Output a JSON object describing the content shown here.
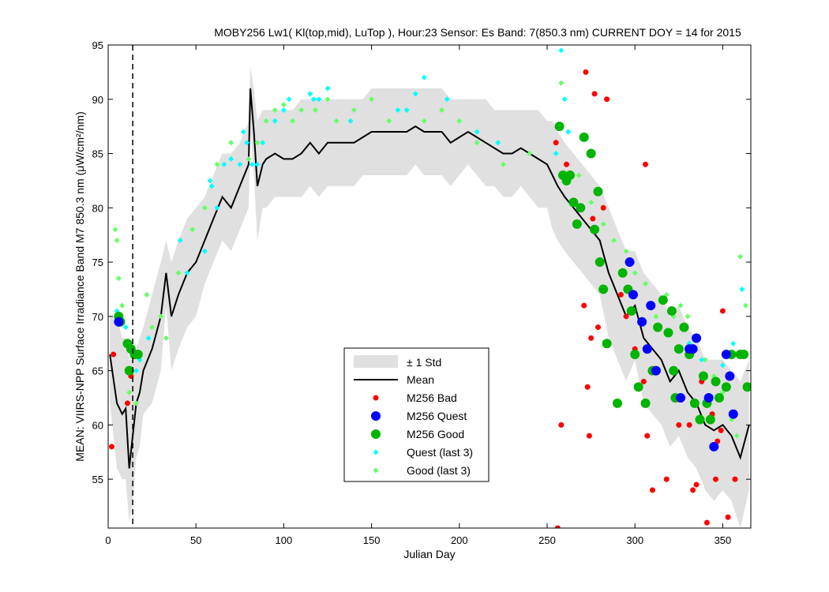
{
  "chart_data": {
    "type": "scatter",
    "title": "MOBY256   Lw1( Kl(top,mid), LuTop ),   Hour:23 Sensor: Es Band: 7(850.3 nm)   CURRENT DOY = 14 for 2015",
    "xlabel": "Julian Day",
    "ylabel": "MEAN: VIIRS-NPP Surface Irradiance Band M7 850.3 nm (μW/cm²/nm)",
    "xlim": [
      0,
      366
    ],
    "ylim": [
      50.5,
      95
    ],
    "xticks": [
      0,
      50,
      100,
      150,
      200,
      250,
      300,
      350
    ],
    "yticks": [
      55,
      60,
      65,
      70,
      75,
      80,
      85,
      90,
      95
    ],
    "current_doy": 14,
    "legend_position": "center-bottom",
    "legend": [
      "± 1 Std",
      "Mean",
      "M256 Bad",
      "M256 Quest",
      "M256 Good",
      "Quest (last 3)",
      "Good (last 3)"
    ],
    "colors": {
      "std_band": "#e0e0e0",
      "mean": "#000000",
      "bad": "#ff0000",
      "quest": "#0000ff",
      "good": "#00b400",
      "quest_last3": "#00ffff",
      "good_last3": "#66ff66"
    },
    "mean": {
      "x": [
        1,
        5,
        8,
        10,
        12,
        14,
        16,
        18,
        20,
        25,
        30,
        33,
        36,
        40,
        45,
        50,
        55,
        60,
        65,
        70,
        75,
        80,
        81,
        83,
        85,
        88,
        90,
        95,
        100,
        105,
        110,
        115,
        120,
        125,
        130,
        135,
        140,
        145,
        150,
        155,
        160,
        165,
        170,
        175,
        180,
        185,
        190,
        195,
        200,
        205,
        210,
        215,
        220,
        225,
        230,
        235,
        240,
        245,
        250,
        253,
        256,
        260,
        265,
        270,
        275,
        280,
        285,
        290,
        295,
        300,
        305,
        310,
        315,
        320,
        325,
        330,
        335,
        340,
        345,
        350,
        355,
        360,
        365
      ],
      "y": [
        66.5,
        62,
        61,
        61.5,
        56,
        59,
        62,
        63,
        65,
        67,
        70,
        74,
        70,
        72,
        74,
        75,
        77,
        79,
        81,
        80,
        82,
        84,
        91,
        87,
        82,
        84,
        84.5,
        85,
        84.5,
        84.5,
        85,
        86,
        85,
        86,
        86,
        86,
        86,
        86.5,
        87,
        87,
        87,
        87,
        87,
        87.5,
        87,
        87,
        87,
        86,
        86.5,
        87,
        86.5,
        86,
        85.5,
        85,
        85,
        85.5,
        85,
        84.5,
        84,
        83,
        82,
        81,
        80,
        79,
        78,
        77,
        74,
        72,
        70,
        71,
        68,
        67,
        66,
        64,
        65,
        63,
        62,
        60,
        59.5,
        60,
        59,
        57,
        60
      ]
    },
    "std_upper": [
      70,
      70,
      68,
      68,
      66,
      66,
      67,
      68,
      69,
      72,
      75,
      77,
      75,
      77,
      79,
      80,
      81,
      83,
      85,
      85,
      86,
      88,
      93,
      91,
      88,
      89,
      89,
      89,
      89,
      89,
      90,
      90,
      90,
      90,
      90,
      90,
      90,
      90,
      91,
      91,
      91,
      91,
      91,
      91,
      91,
      91,
      91,
      90,
      90,
      90,
      90,
      90,
      89,
      89,
      89,
      89,
      89,
      89,
      88,
      88,
      87,
      86,
      85,
      84,
      83,
      82,
      80,
      78,
      76,
      76,
      74,
      73,
      72,
      70,
      71,
      69,
      68,
      66,
      66,
      66,
      65,
      64,
      66
    ],
    "std_lower": [
      62,
      56,
      55,
      55,
      51,
      53,
      57,
      58,
      61,
      62,
      65,
      71,
      65,
      67,
      69,
      70,
      73,
      75,
      77,
      76,
      78,
      80,
      87,
      83,
      77,
      80,
      80,
      81,
      81,
      81,
      81,
      82,
      81,
      82,
      82,
      82,
      82,
      83,
      83,
      83,
      83,
      83,
      83,
      84,
      83,
      83,
      83,
      82,
      83,
      84,
      83,
      82,
      82,
      81,
      81,
      82,
      81,
      80,
      80,
      78,
      77,
      76,
      75,
      74,
      73,
      72,
      68,
      66,
      64,
      66,
      62,
      61,
      60,
      58,
      59,
      57,
      56,
      54,
      53,
      54,
      53,
      50.5,
      54
    ],
    "m256_bad": {
      "x": [
        2,
        3,
        11,
        13,
        255,
        256,
        258,
        261,
        271,
        272,
        273,
        274,
        275,
        276,
        277,
        279,
        282,
        284,
        292,
        295,
        297,
        300,
        305,
        306,
        307,
        310,
        318,
        325,
        331,
        333,
        335,
        338,
        341,
        344,
        346,
        347,
        349,
        350,
        353,
        357
      ],
      "y": [
        58,
        66.5,
        62,
        64.5,
        86,
        50.5,
        60,
        84,
        71,
        92.5,
        63.5,
        59,
        68,
        79,
        90.5,
        69,
        80,
        90,
        72,
        70,
        72.5,
        67,
        64,
        84,
        59,
        54,
        55,
        60,
        60,
        54,
        54.5,
        64,
        51,
        61,
        55,
        58.5,
        59.5,
        70.5,
        51.5,
        55
      ]
    },
    "m256_quest": {
      "x": [
        6,
        297,
        299,
        304,
        307,
        309,
        312,
        326,
        331,
        333,
        335,
        342,
        345,
        352,
        354,
        356
      ],
      "y": [
        69.5,
        75,
        72,
        69.5,
        67,
        71,
        65,
        62.5,
        67,
        67,
        68,
        62.5,
        58,
        66.5,
        64.5,
        61
      ]
    },
    "m256_good": {
      "x": [
        6,
        7,
        11,
        12,
        13,
        15,
        17,
        257,
        259,
        261,
        263,
        265,
        267,
        269,
        271,
        275,
        277,
        279,
        280,
        282,
        284,
        290,
        293,
        296,
        298,
        300,
        302,
        306,
        310,
        313,
        316,
        319,
        321,
        322,
        323,
        325,
        328,
        331,
        334,
        337,
        339,
        341,
        343,
        346,
        348,
        352,
        355,
        360,
        362,
        364
      ],
      "y": [
        70,
        69.5,
        67.5,
        65,
        67,
        66.5,
        66.5,
        87.5,
        83,
        82.5,
        83,
        80.5,
        78.5,
        80,
        86.5,
        85,
        78,
        81.5,
        75,
        72.5,
        67.5,
        62,
        74,
        72.5,
        70.5,
        66.5,
        63.5,
        62,
        65,
        69,
        71.5,
        68.5,
        70.5,
        65,
        62.5,
        67,
        69,
        66.5,
        62,
        60.5,
        64.5,
        62,
        60.5,
        64,
        62.5,
        63.5,
        66.5,
        66.5,
        66.5,
        63.5
      ]
    },
    "quest_last3": {
      "x": [
        5,
        10,
        16,
        18,
        23,
        41,
        45,
        55,
        58,
        59,
        62,
        66,
        70,
        75,
        77,
        79,
        82,
        85,
        88,
        95,
        100,
        103,
        115,
        117,
        120,
        125,
        138,
        165,
        170,
        175,
        180,
        193,
        210,
        222,
        255,
        258,
        260,
        262,
        331,
        338,
        350,
        356,
        361
      ],
      "y": [
        70.5,
        69,
        65,
        66,
        68,
        77,
        74,
        76,
        82.5,
        82,
        80,
        84,
        84.5,
        84,
        87,
        86,
        84,
        84,
        86,
        88,
        89,
        90,
        90.5,
        90,
        90,
        91,
        88,
        89,
        89,
        90.5,
        92,
        90,
        87,
        86,
        85,
        94.5,
        90,
        87,
        67.5,
        66,
        65.5,
        67.5,
        72.5
      ]
    },
    "good_last3": {
      "x": [
        4,
        5,
        6,
        8,
        12,
        16,
        22,
        25,
        30,
        33,
        40,
        48,
        55,
        62,
        70,
        80,
        85,
        90,
        95,
        100,
        105,
        110,
        118,
        125,
        130,
        140,
        150,
        160,
        170,
        180,
        190,
        200,
        210,
        225,
        240,
        258,
        262,
        268,
        275,
        282,
        288,
        295,
        300,
        306,
        312,
        318,
        322,
        326,
        330,
        335,
        340,
        345,
        350,
        355,
        358,
        360,
        363
      ],
      "y": [
        78,
        77,
        73.5,
        71,
        63,
        62,
        72,
        69,
        70,
        68,
        74,
        78,
        80,
        84,
        86,
        84.5,
        86,
        88,
        89,
        89.5,
        88,
        89,
        89,
        90,
        88,
        89,
        90,
        88,
        89,
        88,
        89,
        88,
        86,
        84,
        85,
        91.5,
        87,
        83,
        80.5,
        78.5,
        77,
        76,
        74,
        73,
        70,
        72,
        70,
        71,
        70,
        68,
        66,
        64.5,
        63,
        60.5,
        59,
        75.5,
        71
      ]
    }
  }
}
